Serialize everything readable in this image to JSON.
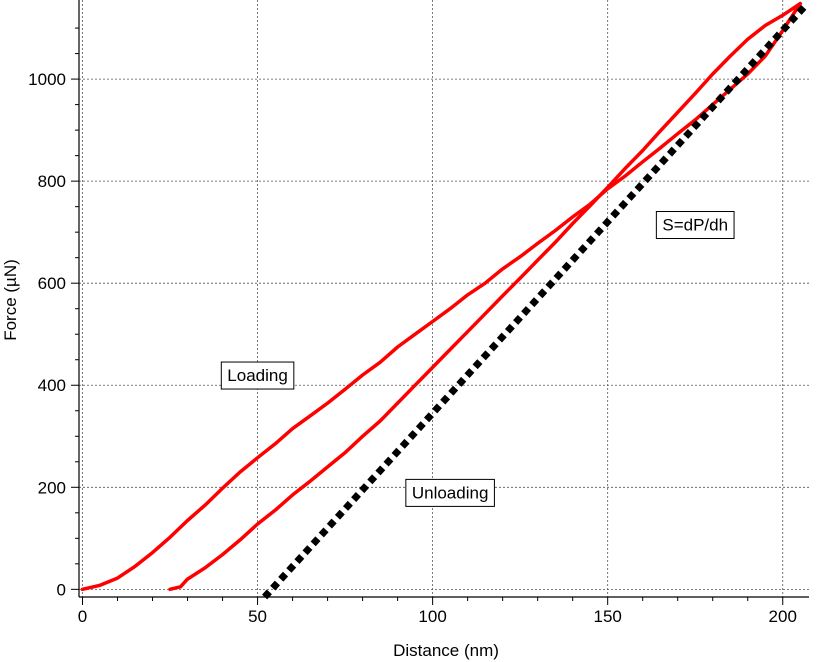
{
  "chart_data": {
    "type": "line",
    "xlabel": "Distance (nm)",
    "ylabel": "Force (µN)",
    "xlim": [
      -1,
      207.5
    ],
    "ylim": [
      -15,
      1155
    ],
    "xticks": [
      0,
      50,
      100,
      150,
      200
    ],
    "yticks": [
      0,
      200,
      400,
      600,
      800,
      1000
    ],
    "grid": true,
    "series": [
      {
        "name": "Loading",
        "color": "#ff0000",
        "x": [
          0,
          5,
          10,
          15,
          20,
          25,
          30,
          35,
          40,
          45,
          50,
          55,
          60,
          65,
          70,
          75,
          80,
          85,
          90,
          95,
          100,
          105,
          110,
          115,
          120,
          125,
          130,
          135,
          140,
          145,
          150,
          155,
          160,
          165,
          170,
          175,
          180,
          185,
          190,
          195,
          200,
          205
        ],
        "y": [
          0,
          8,
          22,
          45,
          72,
          102,
          135,
          165,
          198,
          230,
          258,
          285,
          315,
          340,
          365,
          392,
          420,
          445,
          475,
          500,
          525,
          550,
          577,
          600,
          628,
          652,
          678,
          703,
          730,
          755,
          785,
          810,
          838,
          865,
          893,
          920,
          950,
          980,
          1010,
          1045,
          1095,
          1148
        ]
      },
      {
        "name": "Unloading",
        "color": "#ff0000",
        "x": [
          25,
          28,
          30,
          35,
          40,
          45,
          50,
          55,
          60,
          65,
          70,
          75,
          80,
          85,
          90,
          95,
          100,
          105,
          110,
          115,
          120,
          125,
          130,
          135,
          140,
          145,
          150,
          155,
          160,
          165,
          170,
          175,
          180,
          185,
          190,
          195,
          200,
          205
        ],
        "y": [
          0,
          5,
          20,
          42,
          68,
          97,
          128,
          155,
          185,
          212,
          240,
          268,
          300,
          330,
          365,
          400,
          435,
          470,
          505,
          540,
          575,
          610,
          645,
          680,
          717,
          752,
          788,
          825,
          860,
          898,
          935,
          972,
          1010,
          1045,
          1078,
          1105,
          1125,
          1148
        ]
      },
      {
        "name": "S=dP/dh",
        "color": "#000000",
        "dashed": true,
        "x": [
          52,
          207
        ],
        "y": [
          -15,
          1148
        ]
      }
    ],
    "annotations": [
      {
        "text": "Loading",
        "x": 50,
        "y": 420
      },
      {
        "text": "Unloading",
        "x": 105,
        "y": 190
      },
      {
        "text": "S=dP/dh",
        "x": 175,
        "y": 715
      }
    ]
  }
}
